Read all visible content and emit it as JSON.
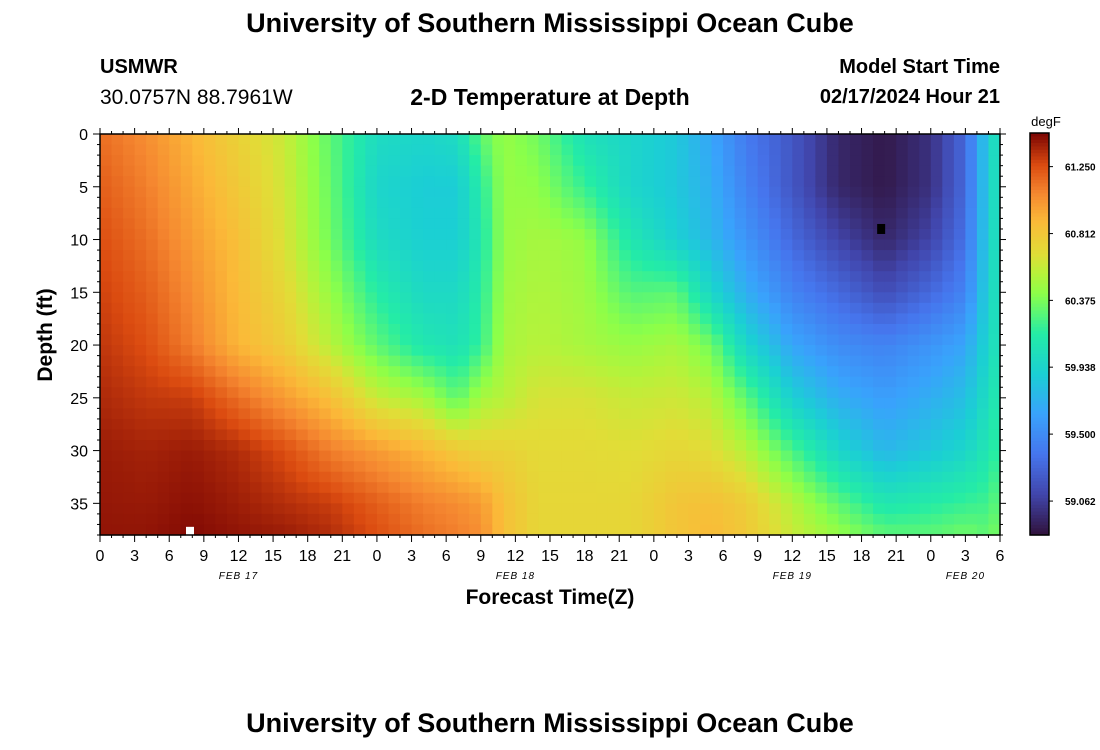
{
  "page": {
    "title": "University of Southern Mississippi Ocean Cube",
    "footer_title": "University of Southern Mississippi Ocean Cube",
    "station_id": "USMWR",
    "station_coords": "30.0757N  88.7961W",
    "plot_title": "2-D Temperature at Depth",
    "model_start_label": "Model Start Time",
    "model_start_value": "02/17/2024 Hour 21"
  },
  "chart_data": {
    "type": "heatmap",
    "title": "2-D Temperature at Depth",
    "xlabel": "Forecast Time(Z)",
    "ylabel": "Depth (ft)",
    "units": "degF",
    "x_hours_range": [
      0,
      78
    ],
    "x_tick_hours": [
      0,
      3,
      6,
      9,
      12,
      15,
      18,
      21,
      24,
      27,
      30,
      33,
      36,
      39,
      42,
      45,
      48,
      51,
      54,
      57,
      60,
      63,
      66,
      69,
      72,
      75,
      78
    ],
    "x_tick_labels": [
      "0",
      "3",
      "6",
      "9",
      "12",
      "15",
      "18",
      "21",
      "0",
      "3",
      "6",
      "9",
      "12",
      "15",
      "18",
      "21",
      "0",
      "3",
      "6",
      "9",
      "12",
      "15",
      "18",
      "21",
      "0",
      "3",
      "6"
    ],
    "date_labels": [
      {
        "hour": 12,
        "text": "FEB 17"
      },
      {
        "hour": 36,
        "text": "FEB 18"
      },
      {
        "hour": 60,
        "text": "FEB 19"
      },
      {
        "hour": 75,
        "text": "FEB 20"
      }
    ],
    "ylim": [
      0,
      38
    ],
    "y_ticks": [
      0,
      5,
      10,
      15,
      20,
      25,
      30,
      35
    ],
    "y_inverted": true,
    "colorbar": {
      "range": [
        58.84,
        61.47
      ],
      "ticks": [
        61.25,
        60.812,
        60.375,
        59.938,
        59.5,
        59.062
      ],
      "tick_labels": [
        "61.250",
        "60.812",
        "60.375",
        "59.938",
        "59.500",
        "59.062"
      ],
      "colormap": "turbo"
    },
    "cell_hours": 1,
    "cell_depth_ft": 1,
    "control_points": [
      {
        "hour": 0,
        "depths": [
          0,
          10,
          20,
          30,
          38
        ],
        "values": [
          61.15,
          61.25,
          61.32,
          61.4,
          61.42
        ]
      },
      {
        "hour": 4,
        "depths": [
          0,
          10,
          20,
          30,
          38
        ],
        "values": [
          61.05,
          61.15,
          61.25,
          61.38,
          61.42
        ]
      },
      {
        "hour": 8,
        "depths": [
          0,
          10,
          20,
          25,
          30,
          38
        ],
        "values": [
          60.9,
          61.0,
          61.1,
          61.3,
          61.4,
          61.45
        ]
      },
      {
        "hour": 12,
        "depths": [
          0,
          10,
          20,
          25,
          30,
          38
        ],
        "values": [
          60.75,
          60.85,
          60.9,
          61.15,
          61.35,
          61.42
        ]
      },
      {
        "hour": 16,
        "depths": [
          0,
          10,
          20,
          25,
          30,
          38
        ],
        "values": [
          60.6,
          60.65,
          60.78,
          61.0,
          61.25,
          61.4
        ]
      },
      {
        "hour": 20,
        "depths": [
          0,
          10,
          20,
          25,
          30,
          35,
          38
        ],
        "values": [
          60.3,
          60.35,
          60.55,
          60.85,
          61.1,
          61.3,
          61.35
        ]
      },
      {
        "hour": 24,
        "depths": [
          0,
          5,
          10,
          20,
          25,
          30,
          35,
          38
        ],
        "values": [
          60.0,
          59.95,
          60.0,
          60.3,
          60.6,
          61.0,
          61.2,
          61.25
        ]
      },
      {
        "hour": 28,
        "depths": [
          0,
          5,
          10,
          15,
          20,
          25,
          30,
          35,
          38
        ],
        "values": [
          59.95,
          59.88,
          59.9,
          59.98,
          60.1,
          60.5,
          60.9,
          61.1,
          61.15
        ]
      },
      {
        "hour": 31,
        "depths": [
          0,
          5,
          10,
          15,
          20,
          25,
          28,
          30,
          35,
          38
        ],
        "values": [
          60.0,
          59.88,
          59.9,
          59.98,
          60.05,
          60.3,
          60.6,
          60.8,
          61.05,
          61.1
        ]
      },
      {
        "hour": 33,
        "depths": [
          0,
          5,
          10,
          20,
          25,
          30,
          35,
          38
        ],
        "values": [
          60.3,
          60.15,
          60.1,
          60.2,
          60.5,
          60.75,
          61.0,
          61.05
        ]
      },
      {
        "hour": 35,
        "depths": [
          0,
          10,
          20,
          25,
          30,
          35,
          38
        ],
        "values": [
          60.45,
          60.45,
          60.5,
          60.55,
          60.75,
          60.85,
          60.85
        ]
      },
      {
        "hour": 38,
        "depths": [
          0,
          10,
          20,
          25,
          30,
          35,
          38
        ],
        "values": [
          60.35,
          60.5,
          60.55,
          60.65,
          60.7,
          60.72,
          60.72
        ]
      },
      {
        "hour": 42,
        "depths": [
          0,
          5,
          10,
          20,
          25,
          30,
          35,
          38
        ],
        "values": [
          60.05,
          60.2,
          60.45,
          60.5,
          60.65,
          60.7,
          60.72,
          60.72
        ]
      },
      {
        "hour": 46,
        "depths": [
          0,
          5,
          10,
          20,
          25,
          30,
          35,
          38
        ],
        "values": [
          59.95,
          59.95,
          60.1,
          60.45,
          60.6,
          60.68,
          60.72,
          60.72
        ]
      },
      {
        "hour": 50,
        "depths": [
          0,
          5,
          10,
          15,
          20,
          25,
          30,
          35,
          38
        ],
        "values": [
          59.85,
          59.85,
          59.9,
          60.3,
          60.5,
          60.62,
          60.72,
          60.82,
          60.82
        ]
      },
      {
        "hour": 53,
        "depths": [
          0,
          5,
          10,
          15,
          20,
          25,
          30,
          35,
          38
        ],
        "values": [
          59.65,
          59.7,
          59.75,
          59.95,
          60.35,
          60.55,
          60.68,
          60.85,
          60.88
        ]
      },
      {
        "hour": 56,
        "depths": [
          0,
          5,
          10,
          15,
          20,
          25,
          30,
          35,
          38
        ],
        "values": [
          59.4,
          59.45,
          59.55,
          59.7,
          59.95,
          60.3,
          60.55,
          60.78,
          60.8
        ]
      },
      {
        "hour": 60,
        "depths": [
          0,
          5,
          10,
          15,
          20,
          25,
          30,
          35,
          38
        ],
        "values": [
          59.2,
          59.2,
          59.3,
          59.45,
          59.65,
          59.9,
          60.25,
          60.55,
          60.6
        ]
      },
      {
        "hour": 64,
        "depths": [
          0,
          5,
          10,
          15,
          20,
          25,
          30,
          35,
          38
        ],
        "values": [
          58.95,
          58.95,
          59.1,
          59.3,
          59.5,
          59.7,
          59.95,
          60.3,
          60.45
        ]
      },
      {
        "hour": 68,
        "depths": [
          0,
          5,
          10,
          15,
          20,
          25,
          30,
          35,
          38
        ],
        "values": [
          58.88,
          58.88,
          58.95,
          59.15,
          59.45,
          59.6,
          59.75,
          60.1,
          60.3
        ]
      },
      {
        "hour": 72,
        "depths": [
          0,
          5,
          10,
          15,
          20,
          25,
          30,
          35,
          38
        ],
        "values": [
          59.0,
          59.0,
          59.1,
          59.3,
          59.55,
          59.7,
          59.85,
          60.15,
          60.3
        ]
      },
      {
        "hour": 75,
        "depths": [
          0,
          5,
          10,
          15,
          20,
          25,
          30,
          35,
          38
        ],
        "values": [
          59.3,
          59.3,
          59.35,
          59.45,
          59.65,
          59.8,
          59.95,
          60.2,
          60.35
        ]
      },
      {
        "hour": 77,
        "depths": [
          0,
          10,
          20,
          30,
          38
        ],
        "values": [
          59.9,
          59.9,
          59.95,
          60.1,
          60.3
        ]
      },
      {
        "hour": 78,
        "depths": [
          0,
          10,
          20,
          30,
          38
        ],
        "values": [
          60.1,
          60.1,
          60.1,
          60.2,
          60.4
        ]
      }
    ],
    "markers": [
      {
        "hour": 67.7,
        "depth": 9,
        "color": "#000000"
      },
      {
        "hour": 7.8,
        "depth": 37.7,
        "color": "#ffffff"
      }
    ]
  }
}
